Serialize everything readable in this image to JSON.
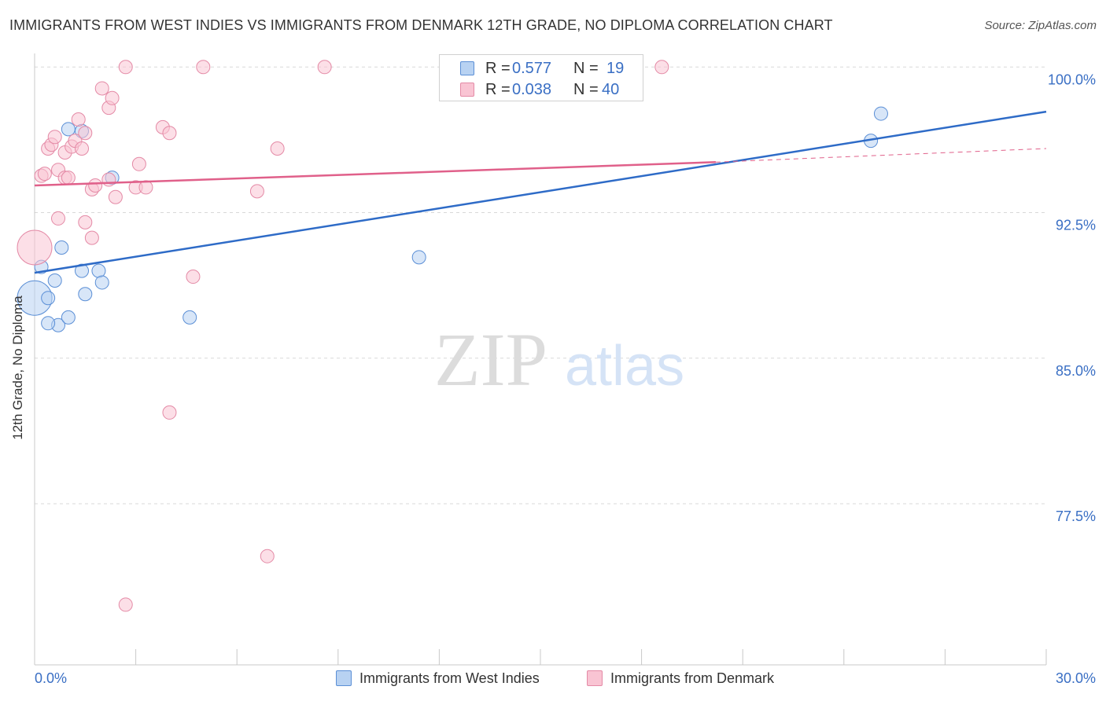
{
  "title": "IMMIGRANTS FROM WEST INDIES VS IMMIGRANTS FROM DENMARK 12TH GRADE, NO DIPLOMA CORRELATION CHART",
  "source": "Source: ZipAtlas.com",
  "watermark": {
    "zip": "ZIP",
    "atlas": "atlas"
  },
  "colors": {
    "blue_fill": "#b8d2f2",
    "blue_stroke": "#5b8fd6",
    "blue_line": "#2e6bc7",
    "pink_fill": "#f9c4d3",
    "pink_stroke": "#e48aa6",
    "pink_line": "#e0608a",
    "tick_label": "#3a6fc4",
    "grid": "#d9d9d9"
  },
  "legend": {
    "rows": [
      {
        "r_label": "R =",
        "r_value": "0.577",
        "n_label": "N =",
        "n_value": "19"
      },
      {
        "r_label": "R =",
        "r_value": "0.038",
        "n_label": "N =",
        "n_value": "40"
      }
    ]
  },
  "bottom_legend": [
    "Immigrants from West Indies",
    "Immigrants from Denmark"
  ],
  "chart_data": {
    "type": "scatter",
    "title": "IMMIGRANTS FROM WEST INDIES VS IMMIGRANTS FROM DENMARK 12TH GRADE, NO DIPLOMA CORRELATION CHART",
    "xlabel": "",
    "ylabel": "12th Grade, No Diploma",
    "xlim": [
      0,
      30
    ],
    "ylim": [
      69.2,
      100.7
    ],
    "x_tick_labels": [
      "0.0%",
      "30.0%"
    ],
    "y_ticks": [
      100.0,
      92.5,
      85.0,
      77.5
    ],
    "y_tick_labels": [
      "100.0%",
      "92.5%",
      "85.0%",
      "77.5%"
    ],
    "grid": true,
    "series": [
      {
        "name": "Immigrants from West Indies",
        "r": 0.577,
        "n": 19,
        "points": [
          [
            0.0,
            88.1,
            "large"
          ],
          [
            0.2,
            89.7
          ],
          [
            0.4,
            88.1
          ],
          [
            0.6,
            89.0
          ],
          [
            0.7,
            86.7
          ],
          [
            0.8,
            90.7
          ],
          [
            1.0,
            96.8
          ],
          [
            1.0,
            87.1
          ],
          [
            1.4,
            89.5
          ],
          [
            1.4,
            96.7
          ],
          [
            1.5,
            88.3
          ],
          [
            1.9,
            89.5
          ],
          [
            2.0,
            88.9
          ],
          [
            2.3,
            94.3
          ],
          [
            4.6,
            87.1
          ],
          [
            11.4,
            90.2
          ],
          [
            24.8,
            96.2
          ],
          [
            25.1,
            97.6
          ],
          [
            0.4,
            86.8
          ]
        ],
        "trendline": {
          "x": [
            0.0,
            30.0
          ],
          "y": [
            89.4,
            97.7
          ]
        }
      },
      {
        "name": "Immigrants from Denmark",
        "r": 0.038,
        "n": 40,
        "points": [
          [
            0.0,
            90.7,
            "large"
          ],
          [
            0.2,
            94.4
          ],
          [
            0.3,
            94.5
          ],
          [
            0.4,
            95.8
          ],
          [
            0.5,
            96.0
          ],
          [
            0.6,
            96.4
          ],
          [
            0.7,
            92.2
          ],
          [
            0.7,
            94.7
          ],
          [
            0.9,
            95.6
          ],
          [
            0.9,
            94.3
          ],
          [
            1.0,
            94.3
          ],
          [
            1.1,
            95.9
          ],
          [
            1.2,
            96.2
          ],
          [
            1.3,
            97.3
          ],
          [
            1.4,
            95.8
          ],
          [
            1.5,
            92.0
          ],
          [
            1.5,
            96.6
          ],
          [
            1.7,
            91.2
          ],
          [
            1.7,
            93.7
          ],
          [
            1.8,
            93.9
          ],
          [
            2.0,
            98.9
          ],
          [
            2.2,
            97.9
          ],
          [
            2.2,
            94.2
          ],
          [
            2.3,
            98.4
          ],
          [
            2.4,
            93.3
          ],
          [
            2.7,
            100.0
          ],
          [
            3.0,
            93.8
          ],
          [
            3.1,
            95.0
          ],
          [
            3.3,
            93.8
          ],
          [
            3.8,
            96.9
          ],
          [
            4.0,
            96.6
          ],
          [
            4.0,
            82.2
          ],
          [
            4.7,
            89.2
          ],
          [
            5.0,
            100.0
          ],
          [
            6.6,
            93.6
          ],
          [
            6.9,
            74.8
          ],
          [
            7.2,
            95.8
          ],
          [
            8.6,
            100.0
          ],
          [
            18.6,
            100.0
          ],
          [
            2.7,
            72.3
          ]
        ],
        "trendline": {
          "x": [
            0.0,
            20.2
          ],
          "y": [
            93.9,
            95.1
          ]
        },
        "trendline_dashed": {
          "x": [
            20.2,
            30.0
          ],
          "y": [
            95.1,
            95.8
          ]
        }
      }
    ]
  }
}
